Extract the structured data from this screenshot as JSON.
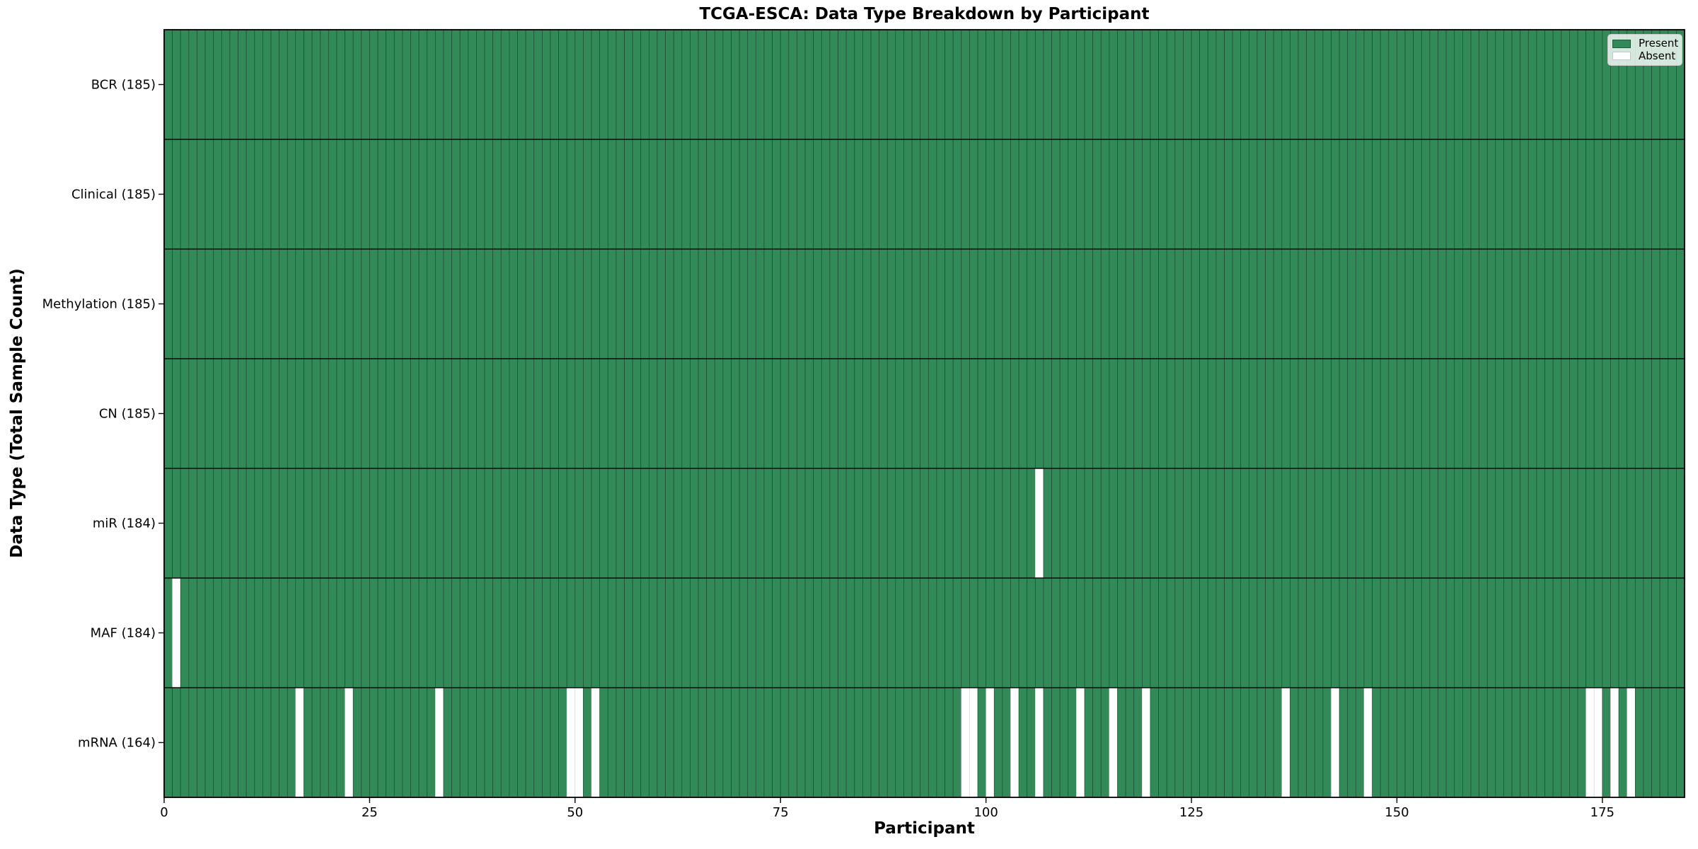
{
  "chart_data": {
    "type": "heatmap",
    "title": "TCGA-ESCA: Data Type Breakdown by Participant",
    "xlabel": "Participant",
    "ylabel": "Data Type (Total Sample Count)",
    "n_participants": 185,
    "x_range": [
      0,
      185
    ],
    "x_ticks": [
      0,
      25,
      50,
      75,
      100,
      125,
      150,
      175
    ],
    "legend_position": "upper right",
    "grid": "cell-edges",
    "rows": [
      {
        "label": "BCR (185)",
        "data_type": "BCR",
        "total_present": 185,
        "absent_participants": []
      },
      {
        "label": "Clinical (185)",
        "data_type": "Clinical",
        "total_present": 185,
        "absent_participants": []
      },
      {
        "label": "Methylation (185)",
        "data_type": "Methylation",
        "total_present": 185,
        "absent_participants": []
      },
      {
        "label": "CN (185)",
        "data_type": "CN",
        "total_present": 185,
        "absent_participants": []
      },
      {
        "label": "miR (184)",
        "data_type": "miR",
        "total_present": 184,
        "absent_participants": [
          106
        ]
      },
      {
        "label": "MAF (184)",
        "data_type": "MAF",
        "total_present": 184,
        "absent_participants": [
          1
        ]
      },
      {
        "label": "mRNA (164)",
        "data_type": "mRNA",
        "total_present": 164,
        "absent_participants": [
          16,
          22,
          33,
          49,
          50,
          52,
          97,
          98,
          100,
          103,
          106,
          111,
          115,
          119,
          136,
          142,
          146,
          173,
          174,
          176,
          178
        ]
      }
    ],
    "legend": [
      {
        "label": "Present",
        "color": "#318a57"
      },
      {
        "label": "Absent",
        "color": "#ffffff"
      }
    ],
    "colors": {
      "present": "#318a57",
      "absent": "#ffffff",
      "present_edge": "#1f4c33",
      "absent_edge": "#d4d4d4",
      "row_divider": "#0c0c0c",
      "spine": "#000000",
      "background": "#ffffff",
      "text": "#000000"
    }
  }
}
